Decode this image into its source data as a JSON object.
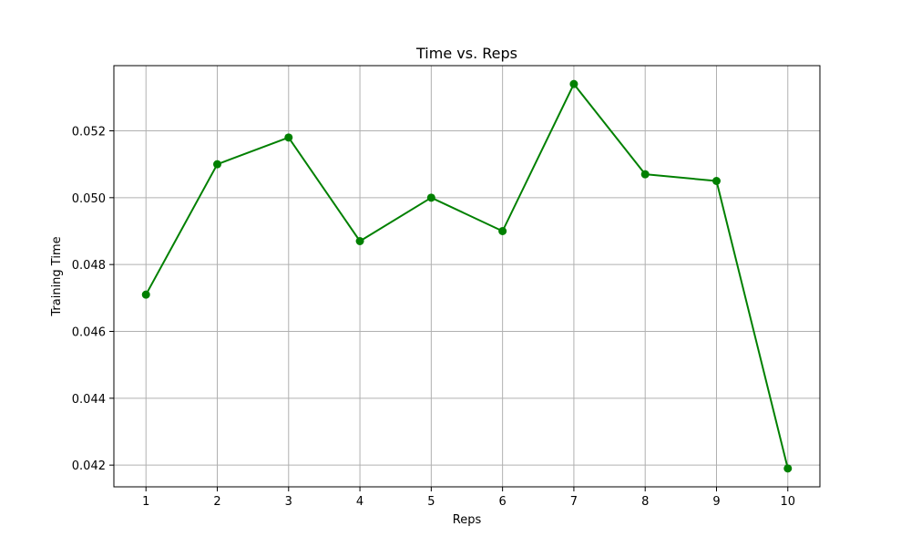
{
  "chart_data": {
    "type": "line",
    "title": "Time vs. Reps",
    "xlabel": "Reps",
    "ylabel": "Training Time",
    "x": [
      1,
      2,
      3,
      4,
      5,
      6,
      7,
      8,
      9,
      10
    ],
    "x_ticks": [
      "1",
      "2",
      "3",
      "4",
      "5",
      "6",
      "7",
      "8",
      "9",
      "10"
    ],
    "y_ticks": [
      "0.042",
      "0.044",
      "0.046",
      "0.048",
      "0.050",
      "0.052"
    ],
    "xlim": [
      0.55,
      10.45
    ],
    "ylim": [
      0.04135,
      0.05395
    ],
    "series": [
      {
        "values": [
          0.0471,
          0.051,
          0.0518,
          0.0487,
          0.05,
          0.049,
          0.0534,
          0.0507,
          0.0505,
          0.0419
        ],
        "color": "#008000",
        "marker": "circle"
      }
    ],
    "grid": true,
    "grid_color": "#b0b0b0",
    "axis_color": "#000000"
  }
}
